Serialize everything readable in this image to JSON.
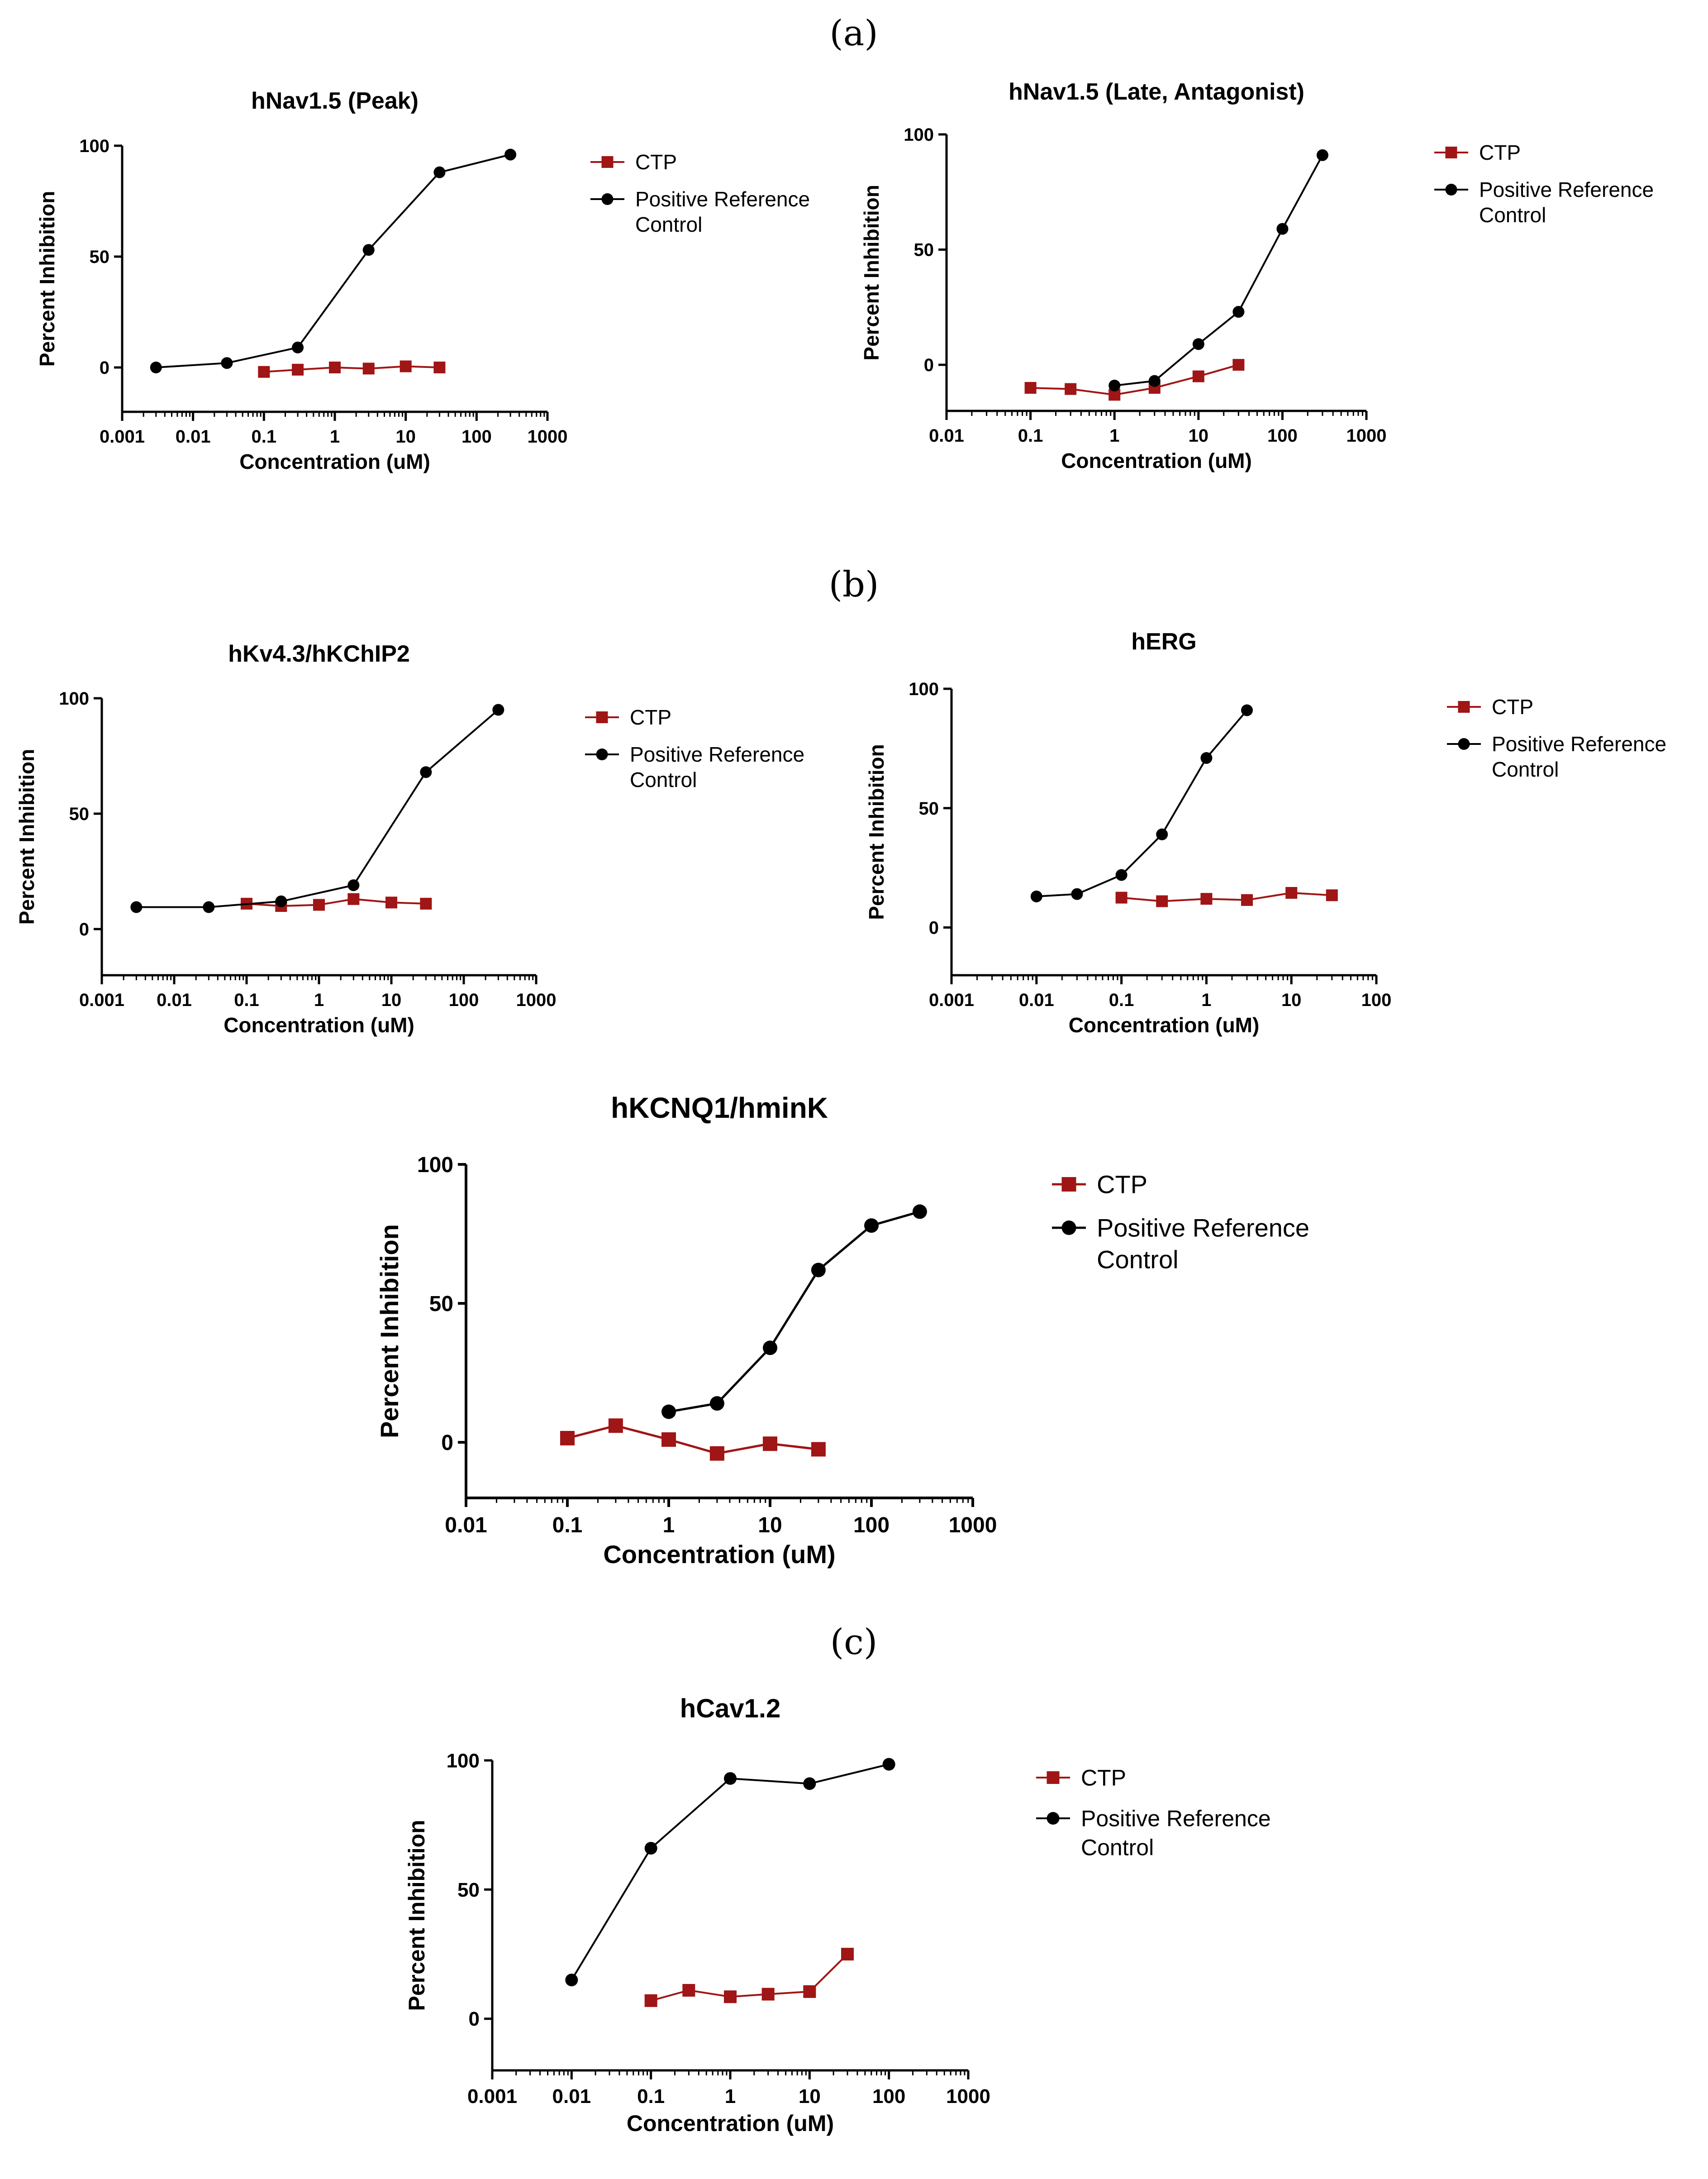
{
  "panel_labels": [
    "(a)",
    "(b)",
    "(c)"
  ],
  "colors": {
    "ctp": "#a01515",
    "reference": "#000000",
    "axis": "#000000"
  },
  "chart_data": [
    {
      "type": "line",
      "title": "hNav1.5 (Peak)",
      "xlabel": "Concentration (uM)",
      "ylabel": "Percent Inhibition",
      "xscale": "log",
      "xlim": [
        0.001,
        1000
      ],
      "ylim": [
        -20,
        100
      ],
      "xticks": [
        "0.001",
        "0.01",
        "0.1",
        "1",
        "10",
        "100",
        "1000"
      ],
      "yticks": [
        "0",
        "50",
        "100"
      ],
      "legend": "right",
      "series": [
        {
          "name": "CTP",
          "marker": "square",
          "x": [
            0.1,
            0.3,
            1,
            3,
            10,
            30
          ],
          "y": [
            -2,
            -1,
            0,
            -0.5,
            0.5,
            0
          ]
        },
        {
          "name": "Positive Reference Control",
          "marker": "circle",
          "x": [
            0.003,
            0.03,
            0.3,
            3,
            30,
            300
          ],
          "y": [
            0,
            2,
            9,
            53,
            88,
            96
          ]
        }
      ]
    },
    {
      "type": "line",
      "title": "hNav1.5 (Late, Antagonist)",
      "xlabel": "Concentration (uM)",
      "ylabel": "Percent Inhibition",
      "xscale": "log",
      "xlim": [
        0.01,
        1000
      ],
      "ylim": [
        -20,
        100
      ],
      "xticks": [
        "0.01",
        "0.1",
        "1",
        "10",
        "100",
        "1000"
      ],
      "yticks": [
        "0",
        "50",
        "100"
      ],
      "legend": "right",
      "series": [
        {
          "name": "CTP",
          "marker": "square",
          "x": [
            0.1,
            0.3,
            1,
            3,
            10,
            30
          ],
          "y": [
            -10,
            -10.5,
            -13,
            -10,
            -5,
            0
          ]
        },
        {
          "name": "Positive Reference Control",
          "marker": "circle",
          "x": [
            1,
            3,
            10,
            30,
            100,
            300
          ],
          "y": [
            -9,
            -7,
            9,
            23,
            59,
            91
          ]
        }
      ]
    },
    {
      "type": "line",
      "title": "hKv4.3/hKChIP2",
      "xlabel": "Concentration (uM)",
      "ylabel": "Percent Inhibition",
      "xscale": "log",
      "xlim": [
        0.001,
        1000
      ],
      "ylim": [
        -20,
        100
      ],
      "xticks": [
        "0.001",
        "0.01",
        "0.1",
        "1",
        "10",
        "100",
        "1000"
      ],
      "yticks": [
        "0",
        "50",
        "100"
      ],
      "legend": "right",
      "series": [
        {
          "name": "CTP",
          "marker": "square",
          "x": [
            0.1,
            0.3,
            1,
            3,
            10,
            30
          ],
          "y": [
            11,
            10,
            10.5,
            13,
            11.5,
            11
          ]
        },
        {
          "name": "Positive Reference Control",
          "marker": "circle",
          "x": [
            0.003,
            0.03,
            0.3,
            3,
            30,
            300
          ],
          "y": [
            9.5,
            9.5,
            12,
            19,
            68,
            95
          ]
        }
      ]
    },
    {
      "type": "line",
      "title": "hERG",
      "xlabel": "Concentration (uM)",
      "ylabel": "Percent Inhibition",
      "xscale": "log",
      "xlim": [
        0.001,
        100
      ],
      "ylim": [
        -20,
        100
      ],
      "xticks": [
        "0.001",
        "0.01",
        "0.1",
        "1",
        "10",
        "100"
      ],
      "yticks": [
        "0",
        "50",
        "100"
      ],
      "legend": "right",
      "series": [
        {
          "name": "CTP",
          "marker": "square",
          "x": [
            0.1,
            0.3,
            1,
            3,
            10,
            30
          ],
          "y": [
            12.5,
            11,
            12,
            11.5,
            14.5,
            13.5
          ]
        },
        {
          "name": "Positive Reference Control",
          "marker": "circle",
          "x": [
            0.01,
            0.03,
            0.1,
            0.3,
            1,
            3
          ],
          "y": [
            13,
            14,
            22,
            39,
            71,
            91
          ]
        }
      ]
    },
    {
      "type": "line",
      "title": "hKCNQ1/hminK",
      "xlabel": "Concentration (uM)",
      "ylabel": "Percent Inhibition",
      "xscale": "log",
      "xlim": [
        0.01,
        1000
      ],
      "ylim": [
        -20,
        100
      ],
      "xticks": [
        "0.01",
        "0.1",
        "1",
        "10",
        "100",
        "1000"
      ],
      "yticks": [
        "0",
        "50",
        "100"
      ],
      "legend": "right",
      "series": [
        {
          "name": "CTP",
          "marker": "square",
          "x": [
            0.1,
            0.3,
            1,
            3,
            10,
            30
          ],
          "y": [
            1.5,
            6,
            1,
            -4,
            -0.5,
            -2.5
          ]
        },
        {
          "name": "Positive Reference Control",
          "marker": "circle",
          "x": [
            1,
            3,
            10,
            30,
            100,
            300
          ],
          "y": [
            11,
            14,
            34,
            62,
            78,
            83
          ]
        }
      ]
    },
    {
      "type": "line",
      "title": "hCav1.2",
      "xlabel": "Concentration (uM)",
      "ylabel": "Percent Inhibition",
      "xscale": "log",
      "xlim": [
        0.001,
        1000
      ],
      "ylim": [
        -20,
        100
      ],
      "xticks": [
        "0.001",
        "0.01",
        "0.1",
        "1",
        "10",
        "100",
        "1000"
      ],
      "yticks": [
        "0",
        "50",
        "100"
      ],
      "legend": "right",
      "series": [
        {
          "name": "CTP",
          "marker": "square",
          "x": [
            0.1,
            0.3,
            1,
            3,
            10,
            30
          ],
          "y": [
            7,
            11,
            8.5,
            9.5,
            10.5,
            25
          ]
        },
        {
          "name": "Positive Reference Control",
          "marker": "circle",
          "x": [
            0.01,
            0.1,
            1,
            10,
            100
          ],
          "y": [
            15,
            66,
            93,
            91,
            98.5
          ]
        }
      ]
    }
  ]
}
